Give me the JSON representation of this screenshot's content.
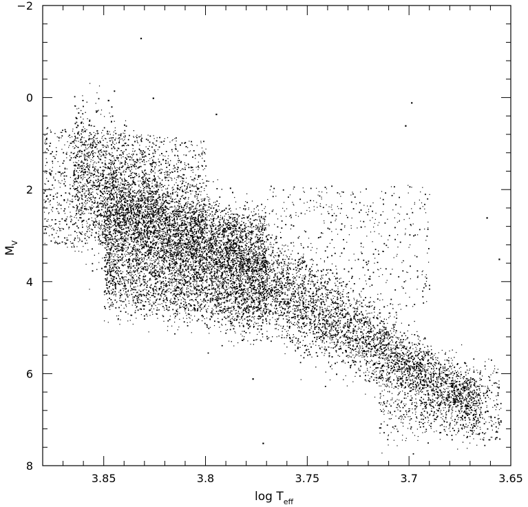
{
  "chart_data": {
    "type": "scatter",
    "title": "",
    "xlabel_main": "log T",
    "xlabel_sub": "eff",
    "ylabel_main": "M",
    "ylabel_sub": "V",
    "xlim": [
      3.88,
      3.65
    ],
    "ylim": [
      -2,
      8
    ],
    "y_inverted": true,
    "x_inverted": true,
    "xticks": [
      3.85,
      3.8,
      3.75,
      3.7,
      3.65
    ],
    "xtick_labels": [
      "3.85",
      "3.8",
      "3.75",
      "3.7",
      "3.65"
    ],
    "yticks": [
      -2,
      0,
      2,
      4,
      6,
      8
    ],
    "ytick_labels": [
      "−2",
      "0",
      "2",
      "4",
      "6",
      "8"
    ],
    "x_minor_step": 0.01,
    "y_minor_step": 0.4,
    "marker_color": "#000000",
    "grid": false,
    "legend": "none",
    "points_description_values": {
      "main_sequence_ridge": [
        [
          3.86,
          1.8
        ],
        [
          3.83,
          2.7
        ],
        [
          3.8,
          3.4
        ],
        [
          3.77,
          4.3
        ],
        [
          3.74,
          5.2
        ],
        [
          3.71,
          6.0
        ],
        [
          3.69,
          6.6
        ],
        [
          3.66,
          7.0
        ]
      ],
      "isolated_points": [
        [
          3.832,
          -1.3
        ],
        [
          3.826,
          0.0
        ],
        [
          3.848,
          0.05
        ],
        [
          3.795,
          0.35
        ],
        [
          3.699,
          0.1
        ],
        [
          3.702,
          0.6
        ],
        [
          3.662,
          2.6
        ],
        [
          3.656,
          3.5
        ],
        [
          3.772,
          7.5
        ],
        [
          3.777,
          6.1
        ],
        [
          3.666,
          7.3
        ]
      ]
    }
  }
}
